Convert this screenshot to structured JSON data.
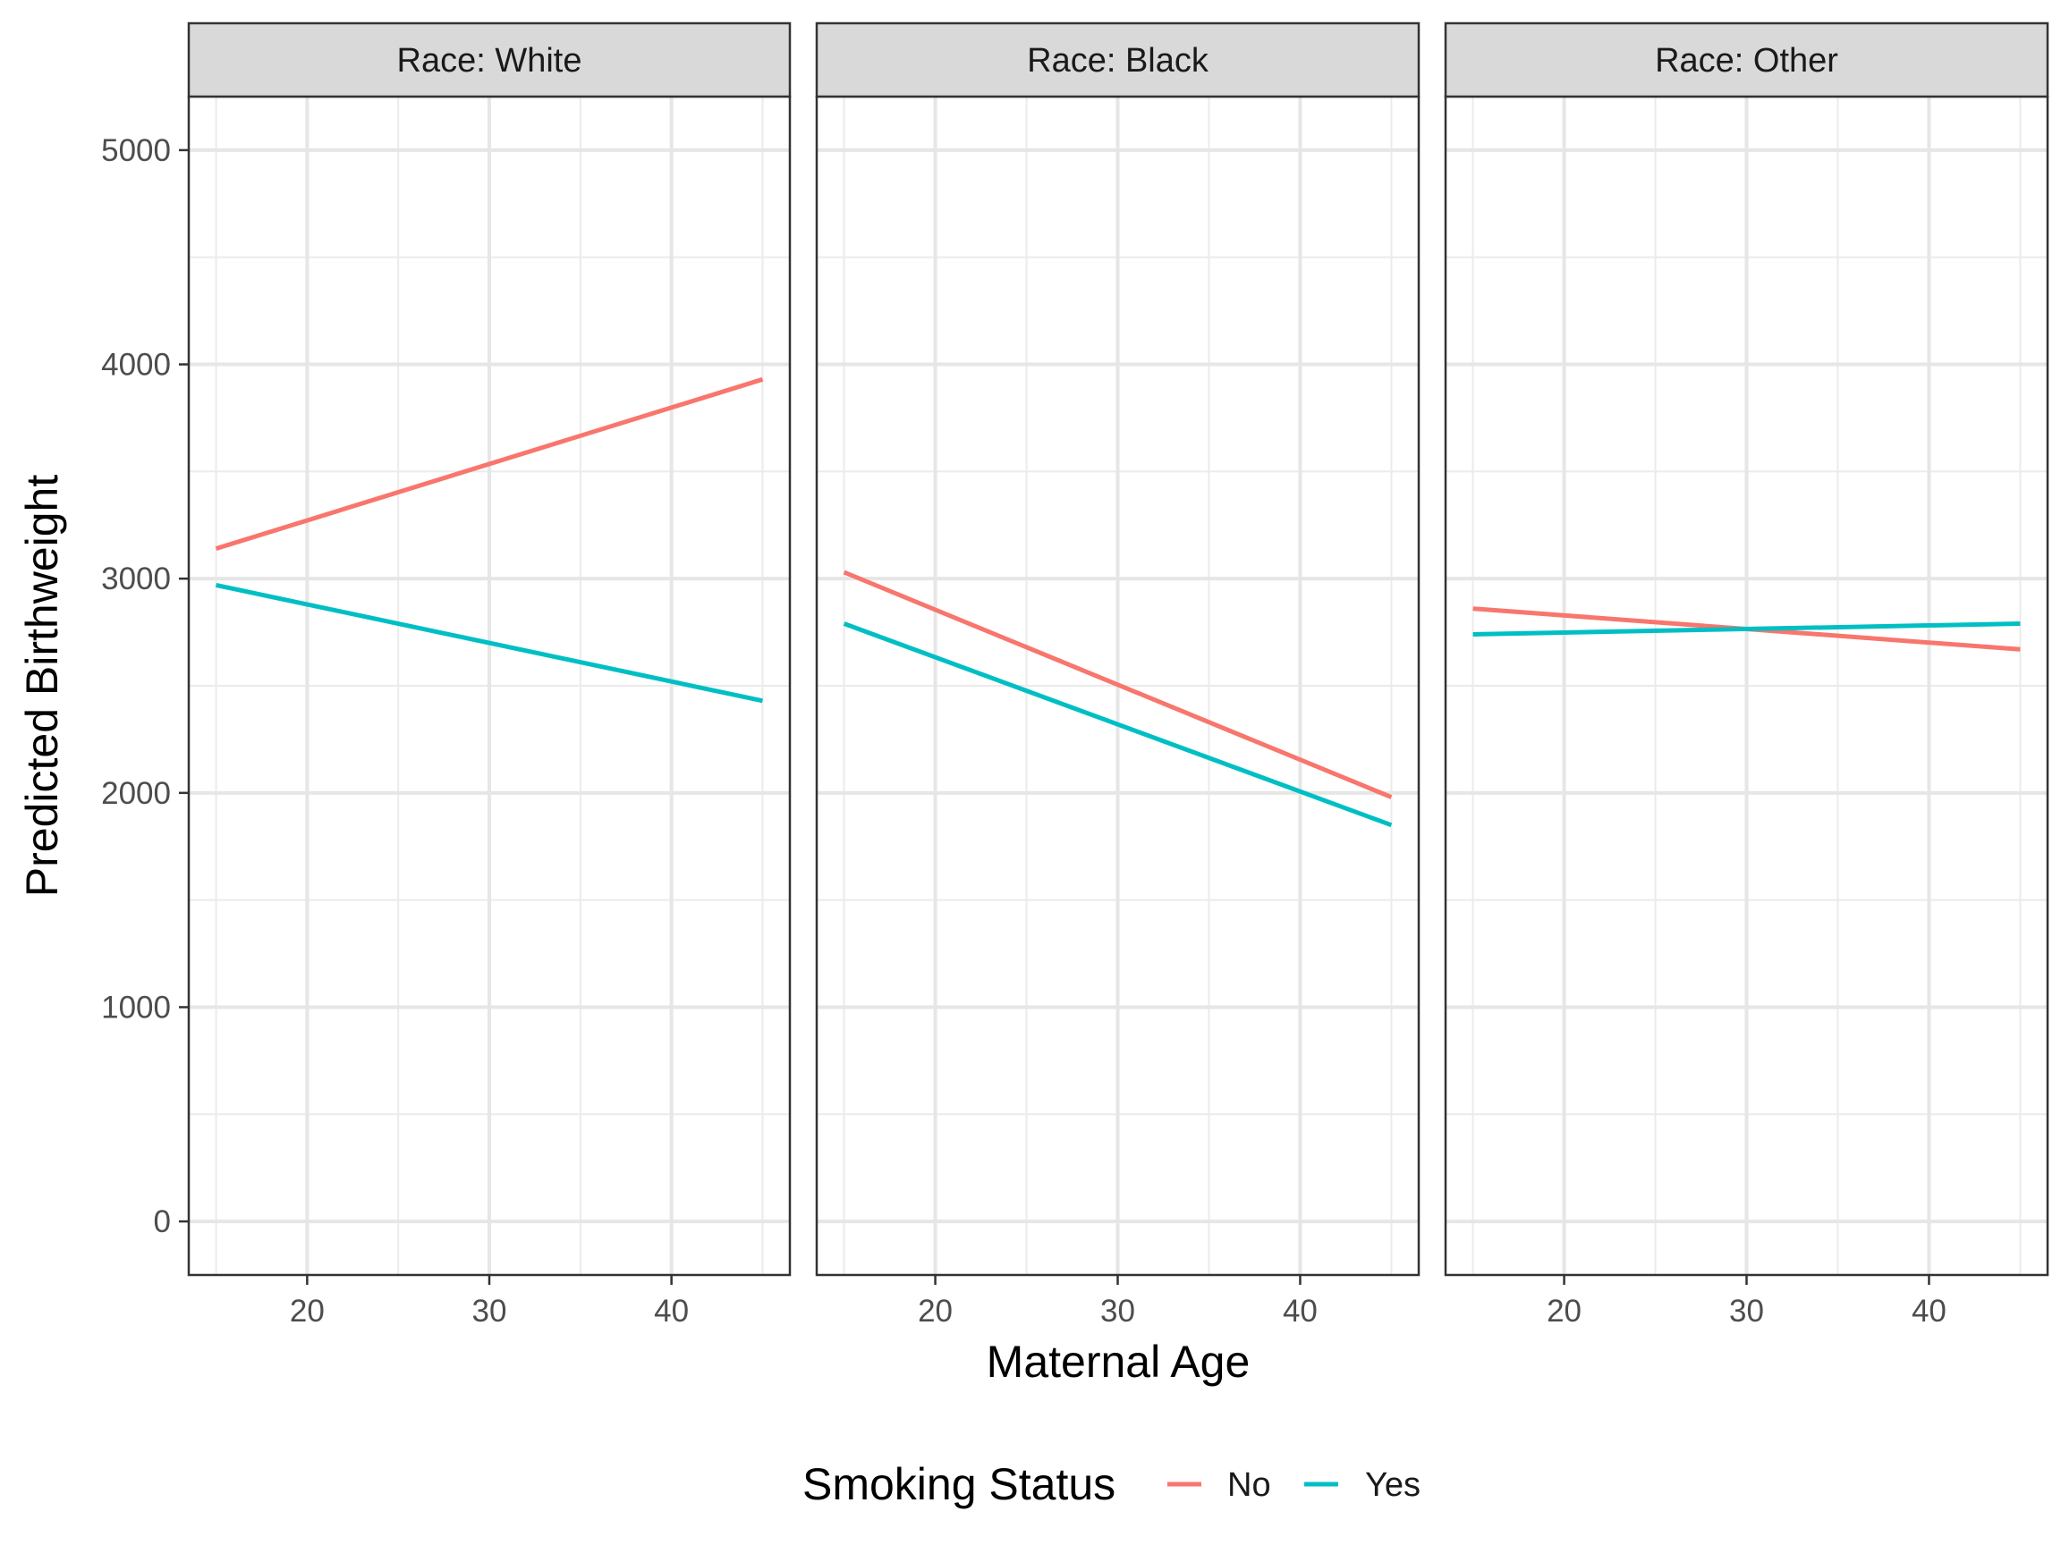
{
  "chart_data": {
    "type": "line",
    "xlabel": "Maternal Age",
    "ylabel": "Predicted Birthweight",
    "xlim": [
      13.5,
      46.5
    ],
    "ylim": [
      -250,
      5250
    ],
    "x_ticks": [
      20,
      30,
      40
    ],
    "x_tick_labels": [
      "20",
      "30",
      "40"
    ],
    "y_ticks": [
      0,
      1000,
      2000,
      3000,
      4000,
      5000
    ],
    "y_tick_labels": [
      "0",
      "1000",
      "2000",
      "3000",
      "4000",
      "5000"
    ],
    "grid": true,
    "legend": {
      "title": "Smoking Status",
      "position": "bottom",
      "entries": [
        {
          "label": "No",
          "color": "#F8766D"
        },
        {
          "label": "Yes",
          "color": "#00BFC4"
        }
      ]
    },
    "facets": [
      {
        "strip": "Race: White",
        "series": [
          {
            "name": "No",
            "color": "#F8766D",
            "x": [
              15,
              45
            ],
            "y": [
              3140,
              3930
            ]
          },
          {
            "name": "Yes",
            "color": "#00BFC4",
            "x": [
              15,
              45
            ],
            "y": [
              2970,
              2430
            ]
          }
        ]
      },
      {
        "strip": "Race: Black",
        "series": [
          {
            "name": "No",
            "color": "#F8766D",
            "x": [
              15,
              45
            ],
            "y": [
              3030,
              1980
            ]
          },
          {
            "name": "Yes",
            "color": "#00BFC4",
            "x": [
              15,
              45
            ],
            "y": [
              2790,
              1850
            ]
          }
        ]
      },
      {
        "strip": "Race: Other",
        "series": [
          {
            "name": "No",
            "color": "#F8766D",
            "x": [
              15,
              45
            ],
            "y": [
              2860,
              2670
            ]
          },
          {
            "name": "Yes",
            "color": "#00BFC4",
            "x": [
              15,
              45
            ],
            "y": [
              2740,
              2790
            ]
          }
        ]
      }
    ]
  }
}
